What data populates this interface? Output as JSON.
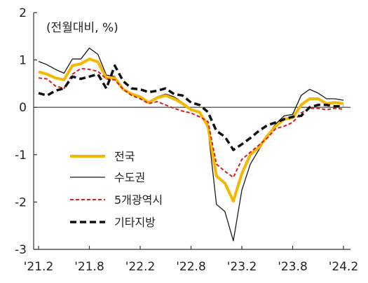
{
  "chart_data": {
    "type": "line",
    "title": "",
    "unit_label": "(전월대비, %)",
    "xlabel": "",
    "ylabel": "",
    "ylim": [
      -3,
      2
    ],
    "yticks": [
      2,
      1,
      0,
      -1,
      -2,
      -3
    ],
    "ytick_labels": [
      "2",
      "1",
      "0",
      "-1",
      "-2",
      "-3"
    ],
    "xtick_labels": [
      "'21.2",
      "'21.8",
      "'22.2",
      "'22.8",
      "'23.2",
      "'23.8",
      "'24.2"
    ],
    "grid": false,
    "legend_position": "lower-left",
    "x": [
      "'21.2",
      "'21.3",
      "'21.4",
      "'21.5",
      "'21.6",
      "'21.7",
      "'21.8",
      "'21.9",
      "'21.10",
      "'21.11",
      "'21.12",
      "'22.1",
      "'22.2",
      "'22.3",
      "'22.4",
      "'22.5",
      "'22.6",
      "'22.7",
      "'22.8",
      "'22.9",
      "'22.10",
      "'22.11",
      "'22.12",
      "'23.1",
      "'23.2",
      "'23.3",
      "'23.4",
      "'23.5",
      "'23.6",
      "'23.7",
      "'23.8",
      "'23.9",
      "'23.10",
      "'23.11",
      "'23.12",
      "'24.1",
      "'24.2"
    ],
    "series": [
      {
        "name": "전국",
        "color": "#F5B800",
        "style": "solid-thick",
        "values": [
          0.75,
          0.7,
          0.62,
          0.58,
          0.88,
          0.92,
          1.02,
          0.96,
          0.62,
          0.62,
          0.38,
          0.28,
          0.22,
          0.1,
          0.2,
          0.25,
          0.18,
          0.08,
          -0.05,
          -0.1,
          -0.4,
          -1.45,
          -1.6,
          -1.98,
          -1.4,
          -1.0,
          -0.85,
          -0.6,
          -0.4,
          -0.25,
          -0.22,
          0.05,
          0.18,
          0.18,
          0.08,
          0.1,
          0.08
        ]
      },
      {
        "name": "수도권",
        "color": "#1a1a1a",
        "style": "solid-thin",
        "values": [
          0.97,
          0.9,
          0.8,
          0.72,
          1.02,
          1.02,
          1.25,
          1.12,
          0.68,
          0.65,
          0.4,
          0.28,
          0.22,
          0.12,
          0.22,
          0.28,
          0.22,
          0.1,
          -0.05,
          -0.1,
          -0.45,
          -2.05,
          -2.2,
          -2.82,
          -1.75,
          -1.2,
          -0.9,
          -0.6,
          -0.35,
          -0.18,
          -0.15,
          0.25,
          0.38,
          0.3,
          0.18,
          0.18,
          0.15
        ]
      },
      {
        "name": "5개광역시",
        "color": "#D42020",
        "style": "dashed-red",
        "values": [
          0.62,
          0.6,
          0.45,
          0.4,
          0.7,
          0.82,
          0.8,
          0.76,
          0.6,
          0.58,
          0.38,
          0.25,
          0.18,
          0.08,
          0.12,
          0.05,
          -0.02,
          -0.08,
          -0.12,
          -0.2,
          -0.3,
          -1.2,
          -1.35,
          -1.48,
          -1.1,
          -0.95,
          -0.8,
          -0.65,
          -0.45,
          -0.4,
          -0.32,
          -0.12,
          -0.02,
          -0.02,
          -0.05,
          -0.02,
          -0.04
        ]
      },
      {
        "name": "기타지방",
        "color": "#111111",
        "style": "dashed-black",
        "values": [
          0.3,
          0.25,
          0.35,
          0.4,
          0.65,
          0.6,
          0.65,
          0.7,
          0.4,
          0.88,
          0.55,
          0.4,
          0.38,
          0.32,
          0.35,
          0.4,
          0.28,
          0.25,
          0.1,
          0.05,
          -0.1,
          -0.5,
          -0.62,
          -0.9,
          -0.78,
          -0.65,
          -0.5,
          -0.38,
          -0.32,
          -0.25,
          -0.2,
          -0.18,
          0.0,
          0.05,
          0.05,
          0.02,
          0.02
        ]
      }
    ]
  }
}
